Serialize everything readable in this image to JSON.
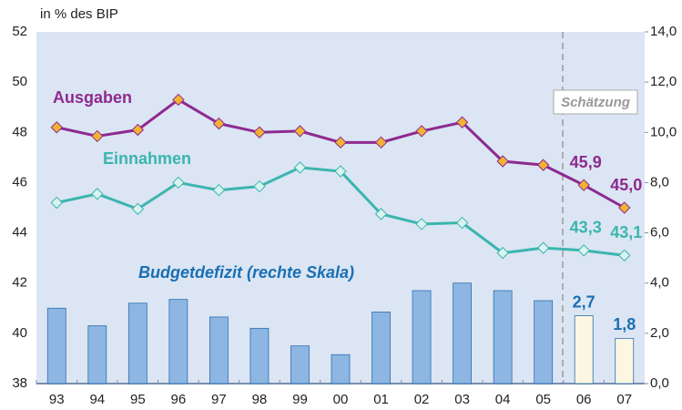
{
  "chart_data": {
    "type": "bar",
    "y_axis_label": "in % des BIP",
    "annotation": "Schätzung",
    "categories": [
      "93",
      "94",
      "95",
      "96",
      "97",
      "98",
      "99",
      "00",
      "01",
      "02",
      "03",
      "04",
      "05",
      "06",
      "07"
    ],
    "ylim": [
      38,
      52
    ],
    "yticks": [
      38,
      40,
      42,
      44,
      46,
      48,
      50,
      52
    ],
    "y2lim": [
      0,
      14
    ],
    "y2ticks": [
      {
        "value": 0,
        "label": "0,0"
      },
      {
        "value": 2,
        "label": "2,0"
      },
      {
        "value": 4,
        "label": "4,0"
      },
      {
        "value": 6,
        "label": "6,0"
      },
      {
        "value": 8,
        "label": "8,0"
      },
      {
        "value": 10,
        "label": "10,0"
      },
      {
        "value": 12,
        "label": "12,0"
      },
      {
        "value": 14,
        "label": "14,0"
      }
    ],
    "series": [
      {
        "name": "Budgetdefizit (rechte Skala)",
        "type": "bar",
        "axis": "y2",
        "color": "#1a6fb4",
        "colors": [
          "#8db6e2",
          "#8db6e2",
          "#8db6e2",
          "#8db6e2",
          "#8db6e2",
          "#8db6e2",
          "#8db6e2",
          "#8db6e2",
          "#8db6e2",
          "#8db6e2",
          "#8db6e2",
          "#8db6e2",
          "#8db6e2",
          "#fbf7e2",
          "#fbf7e2"
        ],
        "values": [
          3.0,
          2.3,
          3.2,
          3.35,
          2.65,
          2.2,
          1.5,
          1.15,
          2.85,
          3.7,
          4.0,
          3.7,
          3.3,
          2.7,
          1.8
        ],
        "value_labels": [
          null,
          null,
          null,
          null,
          null,
          null,
          null,
          null,
          null,
          null,
          null,
          null,
          null,
          "2,7",
          "1,8"
        ]
      },
      {
        "name": "Ausgaben",
        "type": "line",
        "color": "#8e2a8f",
        "marker_color": "#f2b233",
        "values": [
          48.2,
          47.85,
          48.1,
          49.3,
          48.35,
          48.0,
          48.05,
          47.6,
          47.6,
          48.05,
          48.4,
          46.85,
          46.7,
          45.9,
          45.0
        ],
        "value_labels": [
          null,
          null,
          null,
          null,
          null,
          null,
          null,
          null,
          null,
          null,
          null,
          null,
          null,
          "45,9",
          "45,0"
        ]
      },
      {
        "name": "Einnahmen",
        "type": "line",
        "color": "#3bb5ae",
        "marker_color": "#d9f3ef",
        "values": [
          45.2,
          45.55,
          44.95,
          46.0,
          45.7,
          45.85,
          46.6,
          46.45,
          44.75,
          44.35,
          44.4,
          43.2,
          43.4,
          43.3,
          43.1
        ],
        "value_labels": [
          null,
          null,
          null,
          null,
          null,
          null,
          null,
          null,
          null,
          null,
          null,
          null,
          null,
          "43,3",
          "43,1"
        ]
      }
    ]
  }
}
